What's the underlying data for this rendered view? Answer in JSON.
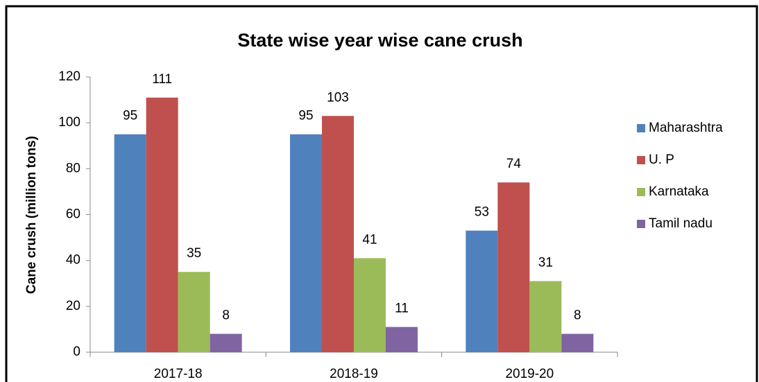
{
  "chart_data": {
    "type": "bar",
    "title": "State wise year wise cane crush",
    "y_label": "Cane crush (million tons)",
    "categories": [
      "2017-18",
      "2018-19",
      "2019-20"
    ],
    "series": [
      {
        "name": "Maharashtra",
        "color": "#4f81bd",
        "values": [
          95,
          95,
          53
        ]
      },
      {
        "name": "U. P",
        "color": "#c0504d",
        "values": [
          111,
          103,
          74
        ]
      },
      {
        "name": "Karnataka",
        "color": "#9bbb59",
        "values": [
          35,
          41,
          31
        ]
      },
      {
        "name": "Tamil nadu",
        "color": "#8064a2",
        "values": [
          8,
          11,
          8
        ]
      }
    ],
    "ylim": [
      0,
      120
    ],
    "yticks": [
      0,
      20,
      40,
      60,
      80,
      100,
      120
    ],
    "legend": "right"
  }
}
